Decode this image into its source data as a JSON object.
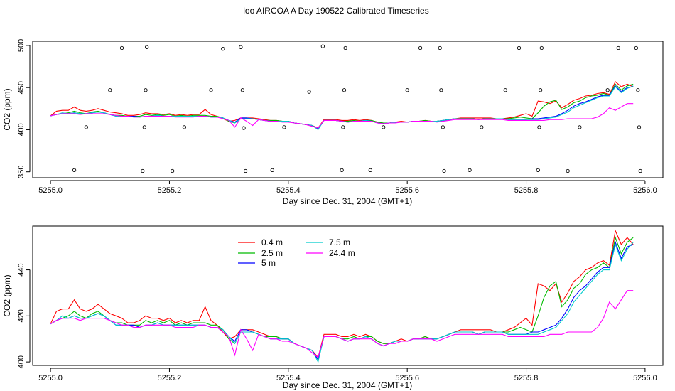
{
  "figure": {
    "title": "loo AIRCOA A  Day 190522  Calibrated Timeseries"
  },
  "chart_data": [
    {
      "type": "line",
      "xlabel": "Day since Dec. 31, 2004 (GMT+1)",
      "ylabel": "CO2 (ppm)",
      "xlim": [
        5254.97,
        5256.03
      ],
      "ylim": [
        343,
        505
      ],
      "xticks": [
        5255.0,
        5255.2,
        5255.4,
        5255.6,
        5255.8,
        5256.0
      ],
      "xtick_labels": [
        "5255.0",
        "5255.2",
        "5255.4",
        "5255.6",
        "5255.8",
        "5256.0"
      ],
      "yticks": [
        350,
        400,
        450,
        500
      ],
      "ytick_labels": [
        "350",
        "400",
        "450",
        "500"
      ],
      "grid": false,
      "outliers": [
        {
          "x": 5255.04,
          "y": 352
        },
        {
          "x": 5255.06,
          "y": 403
        },
        {
          "x": 5255.1,
          "y": 447
        },
        {
          "x": 5255.12,
          "y": 497
        },
        {
          "x": 5255.155,
          "y": 351
        },
        {
          "x": 5255.158,
          "y": 403
        },
        {
          "x": 5255.16,
          "y": 447
        },
        {
          "x": 5255.162,
          "y": 498
        },
        {
          "x": 5255.205,
          "y": 351
        },
        {
          "x": 5255.225,
          "y": 403
        },
        {
          "x": 5255.27,
          "y": 447
        },
        {
          "x": 5255.29,
          "y": 496
        },
        {
          "x": 5255.32,
          "y": 498
        },
        {
          "x": 5255.323,
          "y": 447
        },
        {
          "x": 5255.325,
          "y": 402
        },
        {
          "x": 5255.328,
          "y": 351
        },
        {
          "x": 5255.373,
          "y": 352
        },
        {
          "x": 5255.393,
          "y": 403
        },
        {
          "x": 5255.435,
          "y": 445
        },
        {
          "x": 5255.458,
          "y": 499
        },
        {
          "x": 5255.49,
          "y": 352
        },
        {
          "x": 5255.492,
          "y": 403
        },
        {
          "x": 5255.494,
          "y": 447
        },
        {
          "x": 5255.496,
          "y": 497
        },
        {
          "x": 5255.538,
          "y": 352
        },
        {
          "x": 5255.56,
          "y": 403
        },
        {
          "x": 5255.6,
          "y": 447
        },
        {
          "x": 5255.622,
          "y": 497
        },
        {
          "x": 5255.655,
          "y": 497
        },
        {
          "x": 5255.657,
          "y": 447
        },
        {
          "x": 5255.66,
          "y": 403
        },
        {
          "x": 5255.662,
          "y": 351
        },
        {
          "x": 5255.705,
          "y": 352
        },
        {
          "x": 5255.725,
          "y": 403
        },
        {
          "x": 5255.765,
          "y": 447
        },
        {
          "x": 5255.788,
          "y": 497
        },
        {
          "x": 5255.82,
          "y": 352
        },
        {
          "x": 5255.822,
          "y": 403
        },
        {
          "x": 5255.824,
          "y": 447
        },
        {
          "x": 5255.826,
          "y": 497
        },
        {
          "x": 5255.87,
          "y": 351
        },
        {
          "x": 5255.89,
          "y": 403
        },
        {
          "x": 5255.937,
          "y": 447
        },
        {
          "x": 5255.955,
          "y": 497
        },
        {
          "x": 5255.985,
          "y": 497
        },
        {
          "x": 5255.988,
          "y": 447
        },
        {
          "x": 5255.99,
          "y": 403
        },
        {
          "x": 5255.992,
          "y": 351
        }
      ]
    },
    {
      "type": "line",
      "xlabel": "Day since Dec. 31, 2004 (GMT+1)",
      "ylabel": "CO2 (ppm)",
      "xlim": [
        5254.97,
        5256.03
      ],
      "ylim": [
        398.5,
        459
      ],
      "xticks": [
        5255.0,
        5255.2,
        5255.4,
        5255.6,
        5255.8,
        5256.0
      ],
      "xtick_labels": [
        "5255.0",
        "5255.2",
        "5255.4",
        "5255.6",
        "5255.8",
        "5256.0"
      ],
      "yticks": [
        400,
        420,
        440
      ],
      "ytick_labels": [
        "400",
        "420",
        "440"
      ],
      "grid": false,
      "legend": "top-left"
    }
  ],
  "series_x": [
    5255.0,
    5255.01,
    5255.02,
    5255.03,
    5255.04,
    5255.05,
    5255.06,
    5255.07,
    5255.08,
    5255.09,
    5255.1,
    5255.11,
    5255.12,
    5255.13,
    5255.14,
    5255.15,
    5255.16,
    5255.17,
    5255.18,
    5255.19,
    5255.2,
    5255.21,
    5255.22,
    5255.23,
    5255.24,
    5255.25,
    5255.26,
    5255.27,
    5255.28,
    5255.29,
    5255.3,
    5255.31,
    5255.32,
    5255.33,
    5255.34,
    5255.35,
    5255.36,
    5255.37,
    5255.38,
    5255.39,
    5255.4,
    5255.41,
    5255.42,
    5255.43,
    5255.44,
    5255.45,
    5255.46,
    5255.47,
    5255.48,
    5255.49,
    5255.5,
    5255.51,
    5255.52,
    5255.53,
    5255.54,
    5255.55,
    5255.56,
    5255.57,
    5255.58,
    5255.59,
    5255.6,
    5255.61,
    5255.62,
    5255.63,
    5255.64,
    5255.65,
    5255.66,
    5255.67,
    5255.68,
    5255.69,
    5255.7,
    5255.71,
    5255.72,
    5255.73,
    5255.74,
    5255.75,
    5255.76,
    5255.77,
    5255.78,
    5255.79,
    5255.8,
    5255.81,
    5255.82,
    5255.83,
    5255.84,
    5255.85,
    5255.86,
    5255.87,
    5255.88,
    5255.89,
    5255.9,
    5255.91,
    5255.92,
    5255.93,
    5255.94,
    5255.95,
    5255.96,
    5255.97,
    5255.98
  ],
  "series": [
    {
      "name": "0.4 m",
      "color": "#ff0000",
      "values": [
        416.5,
        422,
        423,
        423,
        427,
        423,
        422,
        423,
        425,
        423,
        421,
        420,
        419,
        417,
        417,
        418,
        420,
        419,
        419,
        418,
        419,
        417,
        418,
        417,
        418,
        418,
        424,
        418,
        416,
        413,
        410,
        411,
        414,
        414,
        414,
        413,
        412,
        411,
        411,
        410,
        410,
        408,
        407,
        406,
        405,
        402,
        412,
        412,
        412,
        411,
        411,
        412,
        411,
        412,
        411,
        409,
        408,
        408,
        409,
        410,
        409,
        410,
        410,
        411,
        410,
        410,
        411,
        412,
        413,
        414,
        414,
        414,
        414,
        414,
        414,
        413,
        413,
        414,
        415,
        417,
        419,
        416,
        434,
        433,
        431,
        434,
        426,
        430,
        435,
        437,
        440,
        441,
        443,
        444,
        442,
        457,
        451,
        454,
        451
      ]
    },
    {
      "name": "2.5 m",
      "color": "#00bb00",
      "values": [
        416.5,
        418,
        419,
        420,
        422,
        420,
        419,
        421,
        422,
        420,
        418,
        417,
        417,
        416,
        416,
        416,
        418,
        417,
        418,
        417,
        418,
        416,
        417,
        416,
        417,
        417,
        417,
        416,
        416,
        414,
        410,
        408,
        413,
        413,
        413,
        412,
        411,
        411,
        411,
        410,
        410,
        408,
        407,
        406,
        405,
        401,
        411,
        411,
        411,
        410,
        410,
        411,
        410,
        411,
        411,
        409,
        408,
        408,
        409,
        409,
        409,
        410,
        410,
        411,
        410,
        410,
        411,
        412,
        413,
        413,
        413,
        413,
        412,
        413,
        413,
        413,
        413,
        413,
        414,
        415,
        414,
        413,
        420,
        428,
        433,
        435,
        424,
        427,
        432,
        434,
        438,
        440,
        441,
        443,
        441,
        454,
        447,
        452,
        454
      ]
    },
    {
      "name": "5 m",
      "color": "#0000ff",
      "values": [
        416.5,
        418,
        419,
        419,
        420,
        419,
        419,
        420,
        421,
        420,
        418,
        416,
        416,
        416,
        416,
        415,
        416,
        416,
        417,
        416,
        416,
        416,
        416,
        416,
        416,
        416,
        416,
        415,
        415,
        414,
        411,
        409,
        414,
        414,
        413,
        412,
        411,
        410,
        410,
        410,
        410,
        408,
        407,
        406,
        405,
        401,
        411,
        411,
        411,
        410,
        409,
        410,
        410,
        411,
        410,
        408,
        407,
        408,
        409,
        409,
        409,
        410,
        410,
        410,
        410,
        410,
        411,
        412,
        413,
        413,
        413,
        413,
        412,
        413,
        413,
        413,
        413,
        412,
        412,
        412,
        412,
        413,
        413,
        414,
        415,
        416,
        419,
        423,
        428,
        431,
        433,
        436,
        439,
        441,
        441,
        452,
        445,
        450,
        451
      ]
    },
    {
      "name": "7.5 m",
      "color": "#00cccc",
      "values": [
        416.5,
        418,
        420,
        419,
        420,
        419,
        419,
        420,
        421,
        420,
        418,
        416,
        416,
        416,
        415,
        415,
        416,
        416,
        417,
        416,
        416,
        416,
        416,
        416,
        416,
        416,
        416,
        415,
        415,
        414,
        411,
        408,
        413,
        413,
        413,
        412,
        411,
        410,
        410,
        410,
        410,
        408,
        407,
        406,
        405,
        400,
        411,
        411,
        411,
        410,
        409,
        410,
        410,
        411,
        410,
        408,
        407,
        408,
        409,
        409,
        409,
        410,
        410,
        410,
        410,
        410,
        411,
        412,
        413,
        413,
        413,
        413,
        412,
        413,
        413,
        413,
        413,
        412,
        412,
        412,
        412,
        412,
        412,
        413,
        414,
        415,
        418,
        421,
        426,
        429,
        432,
        435,
        438,
        440,
        440,
        451,
        444,
        449,
        452
      ]
    },
    {
      "name": "24.4 m",
      "color": "#ff00ff",
      "values": [
        416.5,
        418,
        419,
        419,
        419,
        418,
        419,
        419,
        419,
        419,
        418,
        417,
        416,
        416,
        415,
        415,
        416,
        416,
        416,
        416,
        416,
        415,
        415,
        415,
        415,
        416,
        416,
        415,
        415,
        413,
        411,
        403,
        414,
        410,
        405,
        412,
        411,
        410,
        410,
        409,
        409,
        408,
        407,
        406,
        404,
        402,
        411,
        411,
        411,
        410,
        409,
        410,
        410,
        410,
        410,
        408,
        407,
        408,
        408,
        409,
        409,
        410,
        410,
        410,
        410,
        409,
        410,
        411,
        412,
        412,
        412,
        412,
        412,
        412,
        412,
        412,
        412,
        411,
        411,
        411,
        411,
        411,
        411,
        411,
        412,
        412,
        412,
        413,
        413,
        413,
        413,
        413,
        415,
        419,
        426,
        423,
        427,
        431,
        431
      ]
    }
  ]
}
